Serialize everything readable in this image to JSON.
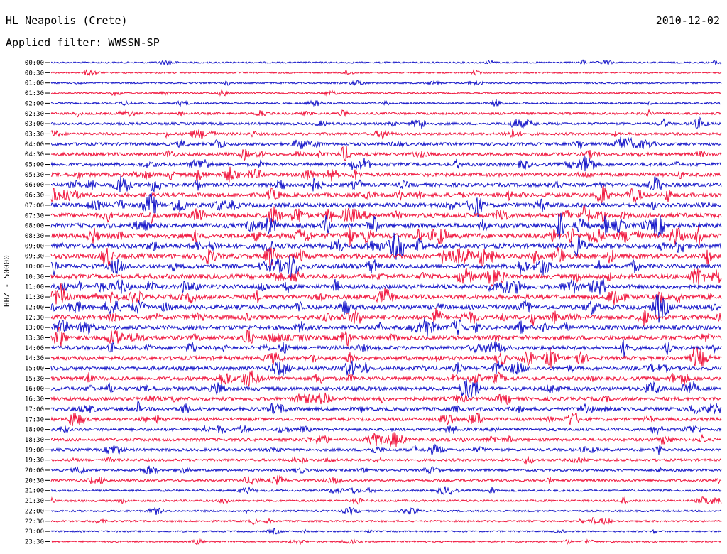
{
  "header": {
    "station": "HL Neapolis (Crete)",
    "date": "2010-12-02",
    "filter": "Applied filter: WWSSN-SP"
  },
  "y_axis": {
    "channel_label": "HHZ - 50000"
  },
  "colors": {
    "odd_trace": "#1414c8",
    "even_trace": "#f0143c",
    "background": "#ffffff",
    "text": "#000000"
  },
  "chart_data": {
    "type": "line",
    "title": "",
    "series": [
      {
        "name": "",
        "values": []
      }
    ],
    "row_labels": [
      "00:00",
      "00:30",
      "01:00",
      "01:30",
      "02:00",
      "02:30",
      "03:00",
      "03:30",
      "04:00",
      "04:30",
      "05:00",
      "05:30",
      "06:00",
      "06:30",
      "07:00",
      "07:30",
      "08:00",
      "08:30",
      "09:00",
      "09:30",
      "10:00",
      "10:30",
      "11:00",
      "11:30",
      "12:00",
      "12:30",
      "13:00",
      "13:30",
      "14:00",
      "14:30",
      "15:00",
      "15:30",
      "16:00",
      "16:30",
      "17:00",
      "17:30",
      "18:00",
      "18:30",
      "19:00",
      "19:30",
      "20:00",
      "20:30",
      "21:00",
      "21:30",
      "22:00",
      "22:30",
      "23:00",
      "23:30"
    ],
    "row_noise_level": [
      0.3,
      0.25,
      0.3,
      0.25,
      0.4,
      0.6,
      0.7,
      0.75,
      0.9,
      1.0,
      1.1,
      1.2,
      1.3,
      1.4,
      1.5,
      1.6,
      1.6,
      1.7,
      1.7,
      1.7,
      1.6,
      1.6,
      1.5,
      1.5,
      1.5,
      1.5,
      1.4,
      1.4,
      1.3,
      1.3,
      1.2,
      1.2,
      1.2,
      1.1,
      1.1,
      1.0,
      0.9,
      0.9,
      0.8,
      0.7,
      0.6,
      0.6,
      0.5,
      0.5,
      0.4,
      0.4,
      0.3,
      0.3
    ],
    "grid": false
  }
}
